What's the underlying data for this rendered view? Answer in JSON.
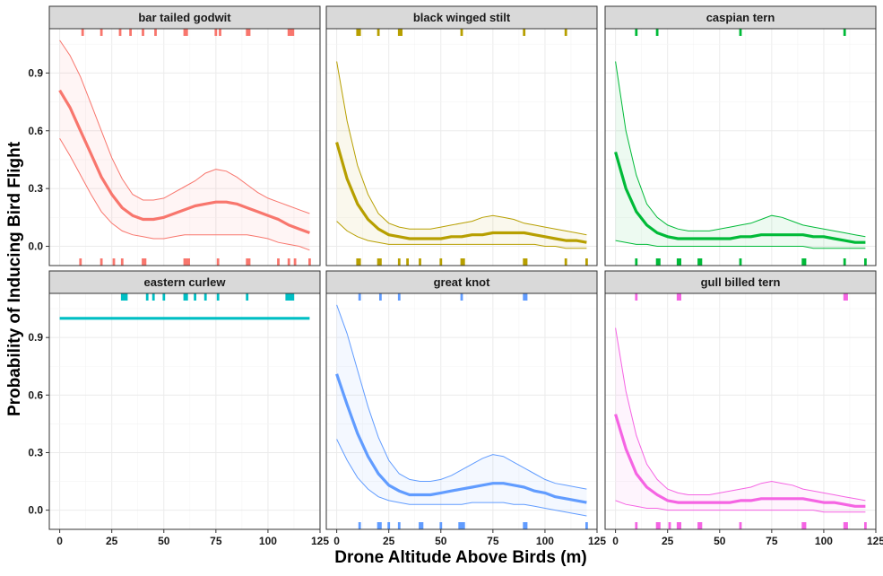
{
  "chart_data": {
    "type": "line",
    "xlabel": "Drone Altitude Above Birds (m)",
    "ylabel": "Probability of Inducing Bird Flight",
    "xlim": [
      -5,
      125
    ],
    "ylim": [
      -0.1,
      1.13
    ],
    "x_ticks": [
      0,
      25,
      50,
      75,
      100,
      125
    ],
    "y_ticks": [
      0.0,
      0.3,
      0.6,
      0.9
    ],
    "y_tick_labels": [
      "0.0",
      "0.3",
      "0.6",
      "0.9"
    ],
    "grid": true,
    "legend": "none",
    "x": [
      0,
      5,
      10,
      15,
      20,
      25,
      30,
      35,
      40,
      45,
      50,
      55,
      60,
      65,
      70,
      75,
      80,
      85,
      90,
      95,
      100,
      105,
      110,
      115,
      120
    ],
    "panels": [
      {
        "label": "bar tailed godwit",
        "color": "#F8766D",
        "fit": [
          0.81,
          0.72,
          0.6,
          0.48,
          0.36,
          0.27,
          0.2,
          0.16,
          0.14,
          0.14,
          0.15,
          0.17,
          0.19,
          0.21,
          0.22,
          0.23,
          0.23,
          0.22,
          0.2,
          0.18,
          0.16,
          0.14,
          0.11,
          0.09,
          0.07
        ],
        "upper": [
          1.07,
          0.99,
          0.88,
          0.74,
          0.6,
          0.46,
          0.35,
          0.27,
          0.24,
          0.24,
          0.25,
          0.28,
          0.31,
          0.34,
          0.38,
          0.4,
          0.39,
          0.36,
          0.32,
          0.28,
          0.25,
          0.23,
          0.21,
          0.19,
          0.17
        ],
        "lower": [
          0.56,
          0.47,
          0.37,
          0.27,
          0.18,
          0.12,
          0.08,
          0.06,
          0.05,
          0.04,
          0.04,
          0.05,
          0.06,
          0.06,
          0.06,
          0.06,
          0.06,
          0.06,
          0.06,
          0.05,
          0.04,
          0.02,
          0.01,
          0.0,
          -0.02
        ],
        "rug_top": [
          11,
          20,
          29,
          34,
          40,
          46,
          60,
          61,
          75,
          77,
          90,
          91,
          110,
          111,
          112
        ],
        "rug_bottom": [
          10,
          20,
          26,
          30,
          40,
          41,
          60,
          61,
          62,
          76,
          90,
          91,
          105,
          110,
          113,
          120
        ]
      },
      {
        "label": "black winged stilt",
        "color": "#B79F00",
        "fit": [
          0.54,
          0.35,
          0.22,
          0.14,
          0.09,
          0.06,
          0.05,
          0.04,
          0.04,
          0.04,
          0.04,
          0.05,
          0.05,
          0.06,
          0.06,
          0.07,
          0.07,
          0.07,
          0.07,
          0.06,
          0.05,
          0.04,
          0.03,
          0.03,
          0.02
        ],
        "upper": [
          0.96,
          0.65,
          0.42,
          0.27,
          0.17,
          0.12,
          0.1,
          0.09,
          0.09,
          0.09,
          0.1,
          0.11,
          0.12,
          0.13,
          0.15,
          0.16,
          0.15,
          0.14,
          0.12,
          0.11,
          0.1,
          0.09,
          0.08,
          0.07,
          0.06
        ],
        "lower": [
          0.13,
          0.08,
          0.05,
          0.03,
          0.02,
          0.01,
          0.01,
          0.01,
          0.01,
          0.01,
          0.01,
          0.01,
          0.01,
          0.01,
          0.01,
          0.01,
          0.01,
          0.01,
          0.01,
          0.01,
          0.0,
          0.0,
          -0.01,
          -0.01,
          -0.01
        ],
        "rug_top": [
          10,
          11,
          20,
          30,
          31,
          60,
          90,
          110
        ],
        "rug_bottom": [
          10,
          11,
          20,
          21,
          30,
          34,
          40,
          50,
          60,
          61,
          90,
          91,
          110,
          120
        ]
      },
      {
        "label": "caspian tern",
        "color": "#00BA38",
        "fit": [
          0.49,
          0.3,
          0.18,
          0.11,
          0.07,
          0.05,
          0.04,
          0.04,
          0.04,
          0.04,
          0.04,
          0.04,
          0.05,
          0.05,
          0.06,
          0.06,
          0.06,
          0.06,
          0.06,
          0.05,
          0.05,
          0.04,
          0.03,
          0.02,
          0.02
        ],
        "upper": [
          0.96,
          0.6,
          0.37,
          0.22,
          0.15,
          0.11,
          0.09,
          0.08,
          0.08,
          0.08,
          0.09,
          0.1,
          0.11,
          0.12,
          0.14,
          0.16,
          0.15,
          0.13,
          0.11,
          0.1,
          0.09,
          0.08,
          0.07,
          0.06,
          0.05
        ],
        "lower": [
          0.03,
          0.02,
          0.01,
          0.01,
          0.0,
          0.0,
          0.0,
          0.0,
          0.0,
          0.0,
          0.0,
          0.0,
          0.0,
          0.0,
          0.0,
          0.0,
          0.0,
          0.0,
          0.0,
          -0.01,
          -0.01,
          -0.01,
          -0.01,
          -0.01,
          -0.01
        ],
        "rug_top": [
          10,
          20,
          60,
          110
        ],
        "rug_bottom": [
          10,
          20,
          21,
          30,
          31,
          40,
          41,
          60,
          90,
          91,
          110,
          120
        ]
      },
      {
        "label": "eastern curlew",
        "color": "#00BFC4",
        "fit": [
          1.0,
          1.0,
          1.0,
          1.0,
          1.0,
          1.0,
          1.0,
          1.0,
          1.0,
          1.0,
          1.0,
          1.0,
          1.0,
          1.0,
          1.0,
          1.0,
          1.0,
          1.0,
          1.0,
          1.0,
          1.0,
          1.0,
          1.0,
          1.0,
          1.0
        ],
        "upper": [],
        "lower": [],
        "rug_top": [
          30,
          31,
          32,
          42,
          45,
          50,
          60,
          61,
          65,
          70,
          76,
          90,
          109,
          110,
          111,
          112
        ],
        "rug_bottom": []
      },
      {
        "label": "great knot",
        "color": "#619CFF",
        "fit": [
          0.71,
          0.55,
          0.4,
          0.28,
          0.19,
          0.13,
          0.1,
          0.08,
          0.08,
          0.08,
          0.09,
          0.1,
          0.11,
          0.12,
          0.13,
          0.14,
          0.14,
          0.13,
          0.12,
          0.1,
          0.09,
          0.07,
          0.06,
          0.05,
          0.04
        ],
        "upper": [
          1.07,
          0.92,
          0.73,
          0.54,
          0.38,
          0.26,
          0.19,
          0.16,
          0.15,
          0.15,
          0.16,
          0.18,
          0.21,
          0.24,
          0.27,
          0.29,
          0.28,
          0.25,
          0.22,
          0.19,
          0.16,
          0.14,
          0.13,
          0.12,
          0.11
        ],
        "lower": [
          0.37,
          0.26,
          0.17,
          0.11,
          0.07,
          0.05,
          0.04,
          0.03,
          0.03,
          0.03,
          0.03,
          0.03,
          0.03,
          0.04,
          0.04,
          0.04,
          0.04,
          0.03,
          0.03,
          0.02,
          0.01,
          0.0,
          -0.01,
          -0.02,
          -0.03
        ],
        "rug_top": [
          11,
          21,
          30,
          60,
          90,
          91
        ],
        "rug_bottom": [
          11,
          20,
          21,
          25,
          30,
          40,
          41,
          50,
          59,
          60,
          61,
          90,
          91,
          120
        ]
      },
      {
        "label": "gull billed tern",
        "color": "#F564E3",
        "fit": [
          0.5,
          0.32,
          0.19,
          0.12,
          0.08,
          0.05,
          0.04,
          0.04,
          0.04,
          0.04,
          0.04,
          0.04,
          0.05,
          0.05,
          0.06,
          0.06,
          0.06,
          0.06,
          0.06,
          0.05,
          0.04,
          0.04,
          0.03,
          0.02,
          0.02
        ],
        "upper": [
          0.95,
          0.62,
          0.39,
          0.24,
          0.16,
          0.11,
          0.09,
          0.08,
          0.08,
          0.08,
          0.09,
          0.1,
          0.11,
          0.12,
          0.14,
          0.15,
          0.14,
          0.13,
          0.11,
          0.1,
          0.09,
          0.08,
          0.07,
          0.06,
          0.05
        ],
        "lower": [
          0.05,
          0.03,
          0.02,
          0.01,
          0.01,
          0.0,
          0.0,
          0.0,
          0.0,
          0.0,
          0.0,
          0.0,
          0.0,
          0.0,
          0.0,
          0.0,
          0.0,
          0.0,
          0.0,
          0.0,
          -0.01,
          -0.01,
          -0.01,
          -0.01,
          -0.01
        ],
        "rug_top": [
          10,
          30,
          31,
          110,
          111
        ],
        "rug_bottom": [
          10,
          20,
          21,
          26,
          30,
          31,
          40,
          41,
          60,
          90,
          91,
          110,
          111,
          120
        ]
      }
    ]
  }
}
